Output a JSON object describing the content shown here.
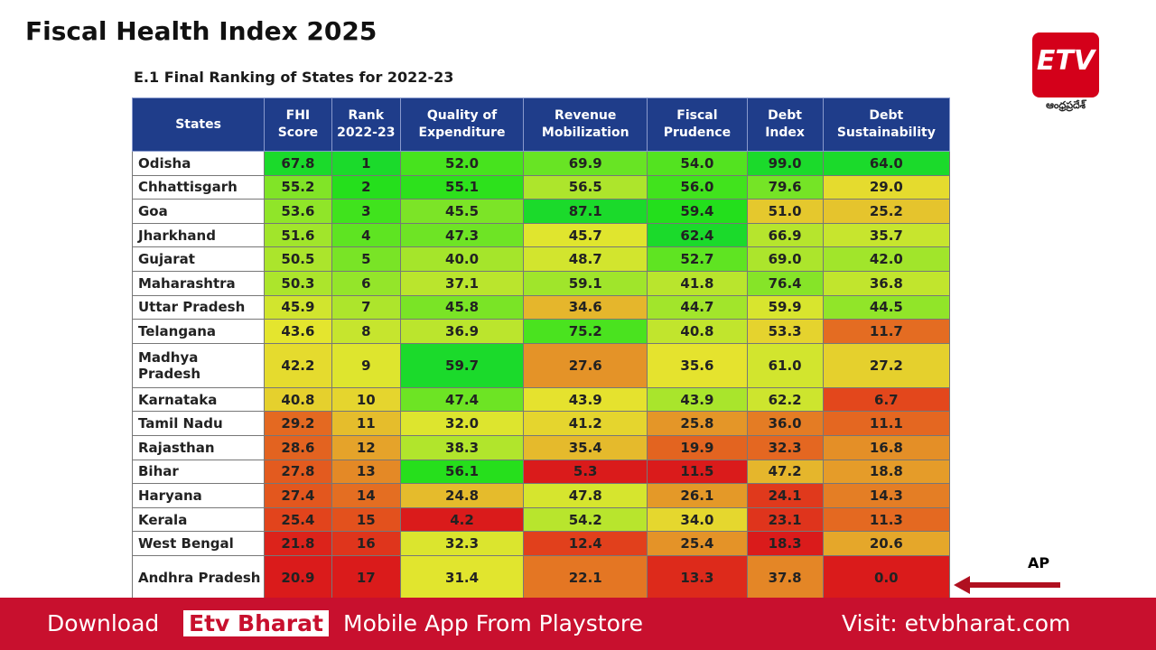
{
  "header": {
    "title": "Fiscal Health Index 2025"
  },
  "logo": {
    "mark": "ETV",
    "region": "ఆంధ్రప్రదేశ్"
  },
  "table": {
    "title": "E.1 Final Ranking of States for 2022-23",
    "columns": [
      "States",
      "FHI Score",
      "Rank 2022-23",
      "Quality of Expenditure",
      "Revenue Mobilization",
      "Fiscal Prudence",
      "Debt Index",
      "Debt Sustainability"
    ],
    "rows": [
      [
        "Odisha",
        "67.8",
        "1",
        "52.0",
        "69.9",
        "54.0",
        "99.0",
        "64.0"
      ],
      [
        "Chhattisgarh",
        "55.2",
        "2",
        "55.1",
        "56.5",
        "56.0",
        "79.6",
        "29.0"
      ],
      [
        "Goa",
        "53.6",
        "3",
        "45.5",
        "87.1",
        "59.4",
        "51.0",
        "25.2"
      ],
      [
        "Jharkhand",
        "51.6",
        "4",
        "47.3",
        "45.7",
        "62.4",
        "66.9",
        "35.7"
      ],
      [
        "Gujarat",
        "50.5",
        "5",
        "40.0",
        "48.7",
        "52.7",
        "69.0",
        "42.0"
      ],
      [
        "Maharashtra",
        "50.3",
        "6",
        "37.1",
        "59.1",
        "41.8",
        "76.4",
        "36.8"
      ],
      [
        "Uttar Pradesh",
        "45.9",
        "7",
        "45.8",
        "34.6",
        "44.7",
        "59.9",
        "44.5"
      ],
      [
        "Telangana",
        "43.6",
        "8",
        "36.9",
        "75.2",
        "40.8",
        "53.3",
        "11.7"
      ],
      [
        "Madhya Pradesh",
        "42.2",
        "9",
        "59.7",
        "27.6",
        "35.6",
        "61.0",
        "27.2"
      ],
      [
        "Karnataka",
        "40.8",
        "10",
        "47.4",
        "43.9",
        "43.9",
        "62.2",
        "6.7"
      ],
      [
        "Tamil Nadu",
        "29.2",
        "11",
        "32.0",
        "41.2",
        "25.8",
        "36.0",
        "11.1"
      ],
      [
        "Rajasthan",
        "28.6",
        "12",
        "38.3",
        "35.4",
        "19.9",
        "32.3",
        "16.8"
      ],
      [
        "Bihar",
        "27.8",
        "13",
        "56.1",
        "5.3",
        "11.5",
        "47.2",
        "18.8"
      ],
      [
        "Haryana",
        "27.4",
        "14",
        "24.8",
        "47.8",
        "26.1",
        "24.1",
        "14.3"
      ],
      [
        "Kerala",
        "25.4",
        "15",
        "4.2",
        "54.2",
        "34.0",
        "23.1",
        "11.3"
      ],
      [
        "West Bengal",
        "21.8",
        "16",
        "32.3",
        "12.4",
        "25.4",
        "18.3",
        "20.6"
      ],
      [
        "Andhra Pradesh",
        "20.9",
        "17",
        "31.4",
        "22.1",
        "13.3",
        "37.8",
        "0.0"
      ]
    ]
  },
  "annotation": "AP",
  "banner": {
    "download": "Download",
    "brand": "Etv Bharat",
    "text": "Mobile App From Playstore",
    "visit": "Visit: etvbharat.com"
  }
}
